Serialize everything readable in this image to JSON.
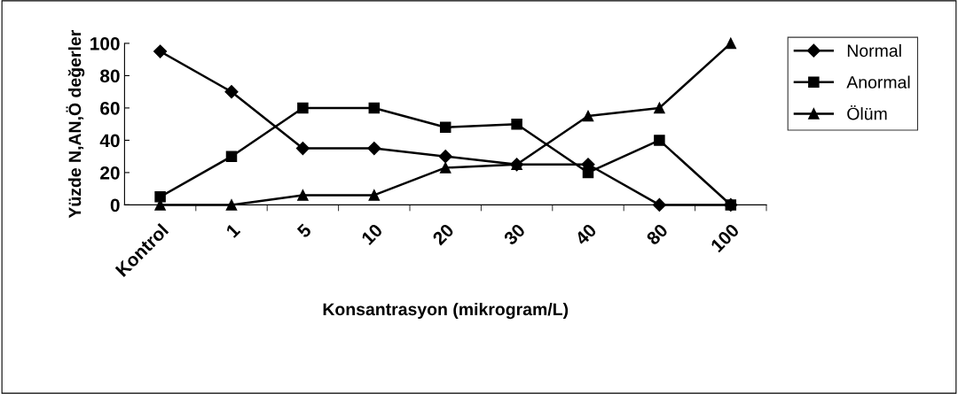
{
  "chart_data": {
    "type": "line",
    "xlabel": "Konsantrasyon (mikrogram/L)",
    "ylabel": "Yüzde N,AN,Ö değerler",
    "categories": [
      "Kontrol",
      "1",
      "5",
      "10",
      "20",
      "30",
      "40",
      "80",
      "100"
    ],
    "series": [
      {
        "name": "Normal",
        "color": "#000000",
        "marker": "diamond",
        "values": [
          95,
          70,
          35,
          35,
          30,
          25,
          25,
          0,
          0
        ]
      },
      {
        "name": "Anormal",
        "color": "#000000",
        "marker": "square",
        "values": [
          5,
          30,
          60,
          60,
          48,
          50,
          20,
          40,
          0
        ]
      },
      {
        "name": "Ölüm",
        "color": "#000000",
        "marker": "triangle",
        "values": [
          0,
          0,
          6,
          6,
          23,
          25,
          55,
          60,
          100
        ]
      }
    ],
    "ylim": [
      0,
      100
    ],
    "yticks": [
      0,
      20,
      40,
      60,
      80,
      100
    ],
    "grid": false,
    "legend": "right",
    "line_style": "solid"
  }
}
